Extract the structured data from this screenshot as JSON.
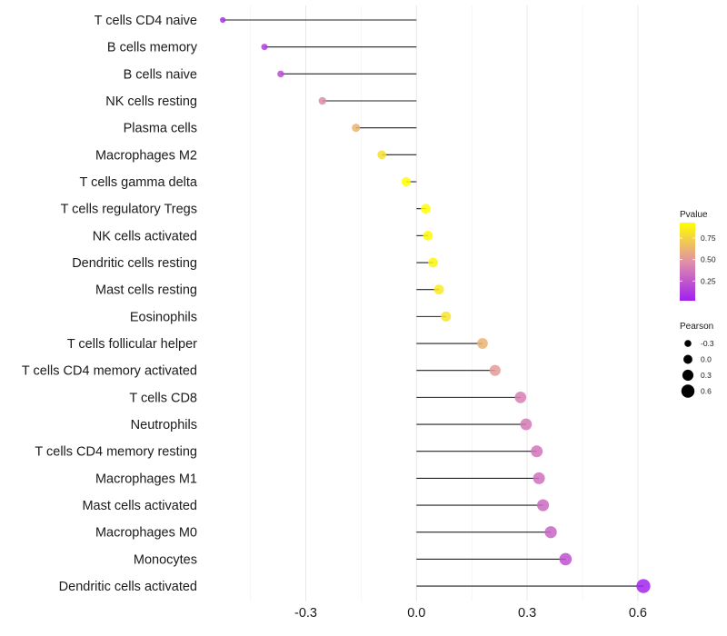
{
  "chart_data": {
    "type": "lollipop",
    "title": "",
    "xlabel": "",
    "ylabel": "",
    "xlim": [
      -0.55,
      0.65
    ],
    "x_ticks": [
      -0.3,
      0.0,
      0.3,
      0.6
    ],
    "x_tick_labels": [
      "-0.3",
      "0.0",
      "0.3",
      "0.6"
    ],
    "x_minor_gridlines": [
      -0.45,
      -0.15,
      0.15,
      0.45
    ],
    "grid": true,
    "categories": [
      "T cells CD4 naive",
      "B cells memory",
      "B cells naive",
      "NK cells resting",
      "Plasma cells",
      "Macrophages M2",
      "T cells gamma delta",
      "T cells regulatory  Tregs ",
      "NK cells activated",
      "Dendritic cells resting",
      "Mast cells resting",
      "Eosinophils",
      "T cells follicular helper",
      "T cells CD4 memory activated",
      "T cells CD8",
      "Neutrophils",
      "T cells CD4 memory resting",
      "Macrophages M1",
      "Mast cells activated",
      "Macrophages M0",
      "Monocytes",
      "Dendritic cells activated"
    ],
    "series": [
      {
        "name": "Pearson",
        "values": [
          -0.525,
          -0.412,
          -0.368,
          -0.255,
          -0.164,
          -0.094,
          -0.028,
          0.025,
          0.031,
          0.045,
          0.061,
          0.08,
          0.179,
          0.213,
          0.282,
          0.297,
          0.326,
          0.332,
          0.343,
          0.364,
          0.404,
          0.615
        ]
      },
      {
        "name": "Pvalue",
        "values": [
          0.08,
          0.15,
          0.2,
          0.45,
          0.62,
          0.8,
          0.93,
          0.93,
          0.91,
          0.89,
          0.85,
          0.82,
          0.62,
          0.52,
          0.4,
          0.38,
          0.36,
          0.35,
          0.32,
          0.3,
          0.22,
          0.04
        ]
      }
    ],
    "legend": {
      "placement": "right",
      "color": {
        "title": "Pvalue",
        "range": [
          0.02,
          0.93
        ],
        "ticks": [
          0.75,
          0.5,
          0.25
        ],
        "tick_labels": [
          "0.75",
          "0.50",
          "0.25"
        ],
        "low_color": "#A020F0",
        "mid_color": "#E190A8",
        "high_color": "#FFFF00"
      },
      "size": {
        "title": "Pearson",
        "values": [
          -0.3,
          0.0,
          0.3,
          0.6
        ],
        "labels": [
          "-0.3",
          "0.0",
          "0.3",
          "0.6"
        ]
      }
    }
  }
}
